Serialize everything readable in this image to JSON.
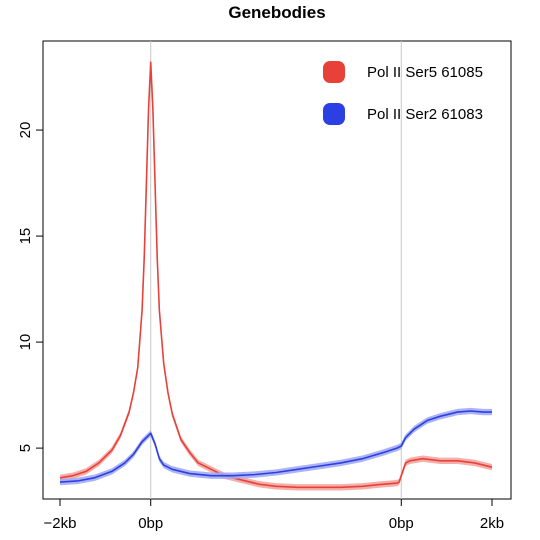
{
  "chart_data": {
    "type": "line",
    "title": "Genebodies",
    "xlabel": "",
    "ylabel": "",
    "x_tick_labels": [
      "−2kb",
      "0bp",
      "0bp",
      "2kb"
    ],
    "x_ticks": [
      0,
      0.21,
      0.79,
      1.0
    ],
    "vlines": [
      0.21,
      0.79
    ],
    "xlim": [
      0,
      1
    ],
    "ylim": [
      2.6,
      24.2
    ],
    "y_ticks": [
      5,
      10,
      15,
      20
    ],
    "grid": false,
    "legend_position": "top-right",
    "series": [
      {
        "name": "Pol II Ser5 61085",
        "color": "#e8413a",
        "band_color": "#f4a6a2",
        "band": 0.15,
        "points": [
          [
            0.0,
            3.6
          ],
          [
            0.03,
            3.7
          ],
          [
            0.06,
            3.9
          ],
          [
            0.09,
            4.3
          ],
          [
            0.12,
            4.9
          ],
          [
            0.14,
            5.6
          ],
          [
            0.16,
            6.7
          ],
          [
            0.17,
            7.6
          ],
          [
            0.18,
            8.8
          ],
          [
            0.19,
            11.5
          ],
          [
            0.195,
            14.0
          ],
          [
            0.2,
            17.5
          ],
          [
            0.205,
            21.0
          ],
          [
            0.21,
            23.2
          ],
          [
            0.215,
            21.0
          ],
          [
            0.22,
            17.5
          ],
          [
            0.225,
            14.0
          ],
          [
            0.23,
            11.5
          ],
          [
            0.24,
            9.0
          ],
          [
            0.25,
            7.6
          ],
          [
            0.26,
            6.6
          ],
          [
            0.28,
            5.4
          ],
          [
            0.3,
            4.8
          ],
          [
            0.32,
            4.3
          ],
          [
            0.35,
            4.0
          ],
          [
            0.38,
            3.7
          ],
          [
            0.42,
            3.5
          ],
          [
            0.46,
            3.3
          ],
          [
            0.5,
            3.2
          ],
          [
            0.55,
            3.15
          ],
          [
            0.6,
            3.15
          ],
          [
            0.65,
            3.15
          ],
          [
            0.7,
            3.2
          ],
          [
            0.75,
            3.3
          ],
          [
            0.78,
            3.35
          ],
          [
            0.785,
            3.4
          ],
          [
            0.8,
            4.3
          ],
          [
            0.81,
            4.4
          ],
          [
            0.84,
            4.5
          ],
          [
            0.88,
            4.4
          ],
          [
            0.92,
            4.4
          ],
          [
            0.96,
            4.3
          ],
          [
            1.0,
            4.1
          ]
        ]
      },
      {
        "name": "Pol II Ser2 61083",
        "color": "#2b3fe3",
        "band_color": "#a3abf2",
        "band": 0.15,
        "points": [
          [
            0.0,
            3.4
          ],
          [
            0.04,
            3.45
          ],
          [
            0.08,
            3.6
          ],
          [
            0.12,
            3.9
          ],
          [
            0.15,
            4.3
          ],
          [
            0.17,
            4.7
          ],
          [
            0.19,
            5.3
          ],
          [
            0.21,
            5.7
          ],
          [
            0.22,
            5.2
          ],
          [
            0.23,
            4.5
          ],
          [
            0.24,
            4.2
          ],
          [
            0.26,
            4.0
          ],
          [
            0.3,
            3.8
          ],
          [
            0.35,
            3.7
          ],
          [
            0.4,
            3.7
          ],
          [
            0.45,
            3.75
          ],
          [
            0.5,
            3.85
          ],
          [
            0.55,
            4.0
          ],
          [
            0.6,
            4.15
          ],
          [
            0.65,
            4.3
          ],
          [
            0.7,
            4.5
          ],
          [
            0.75,
            4.8
          ],
          [
            0.78,
            5.0
          ],
          [
            0.79,
            5.1
          ],
          [
            0.8,
            5.5
          ],
          [
            0.82,
            5.9
          ],
          [
            0.85,
            6.3
          ],
          [
            0.88,
            6.5
          ],
          [
            0.92,
            6.7
          ],
          [
            0.95,
            6.75
          ],
          [
            0.98,
            6.7
          ],
          [
            1.0,
            6.7
          ]
        ]
      }
    ]
  }
}
